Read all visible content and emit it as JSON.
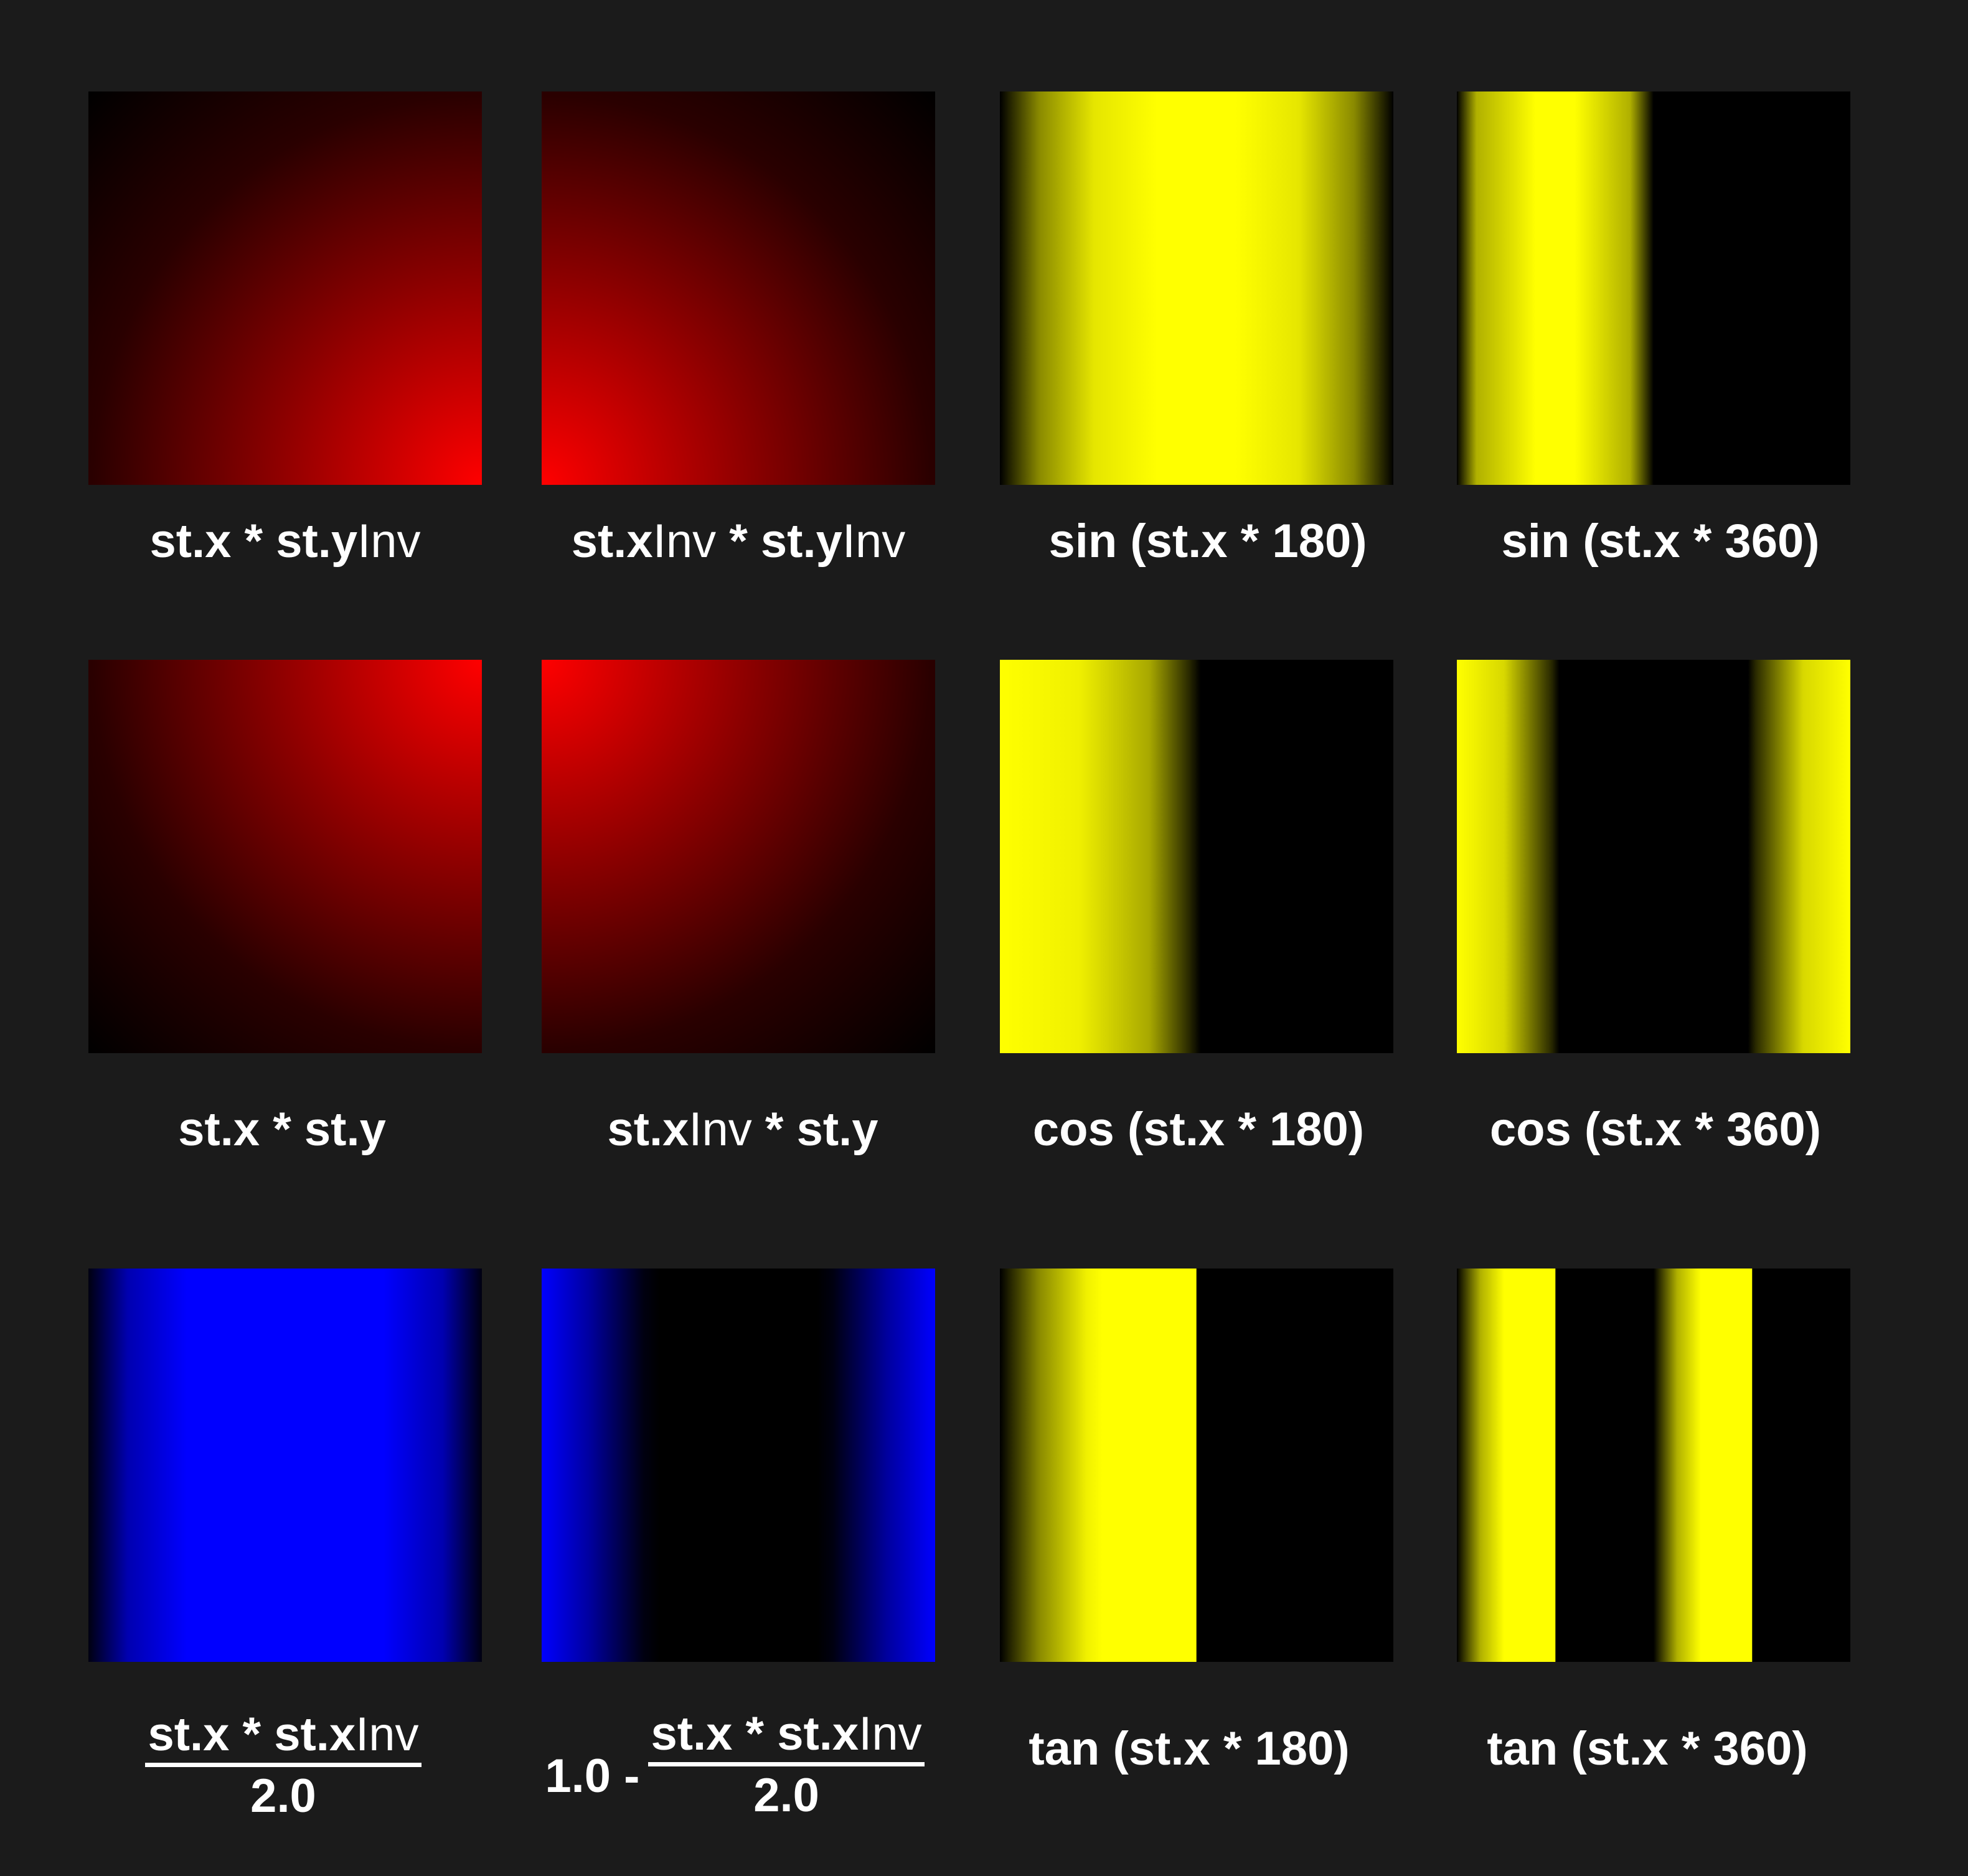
{
  "colors": {
    "background": "#1b1b1b",
    "red": "#ff0000",
    "yellow": "#ffff00",
    "blue": "#0000ff",
    "text": "#ffffff"
  },
  "row1": {
    "l1": {
      "a": "st.x * st.y",
      "b": "Inv"
    },
    "l2": {
      "a": "st.x",
      "b": "Inv",
      "c": " * st.y",
      "d": "Inv"
    },
    "l3": "sin (st.x * 180)",
    "l4": "sin (st.x * 360)"
  },
  "row2": {
    "l1": "st.x * st.y",
    "l2": {
      "a": "st.x",
      "b": "Inv",
      "c": " * st.y"
    },
    "l3": "cos (st.x * 180)",
    "l4": "cos (st.x * 360)"
  },
  "row3": {
    "l1": {
      "num_a": "st.x * st.x",
      "num_b": "Inv",
      "den": "2.0"
    },
    "l2": {
      "prefix": "1.0 -",
      "num_a": "st.x * st.x",
      "num_b": "Inv",
      "den": "2.0"
    },
    "l3": "tan (st.x * 180)",
    "l4": "tan (st.x * 360)"
  }
}
